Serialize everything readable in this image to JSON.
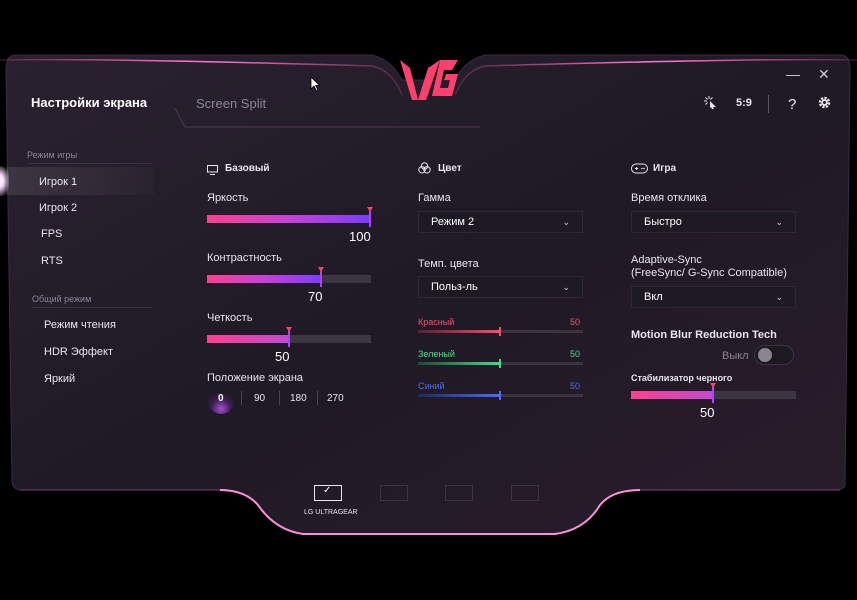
{
  "header": {
    "title": "Настройки экрана",
    "screen_split": "Screen Split",
    "ratio": "5:9",
    "help": "?",
    "logo_text": "LG",
    "minimize": "—",
    "close": "✕"
  },
  "sidebar": {
    "game_mode_head": "Режим игры",
    "game_items": [
      "Игрок 1",
      "Игрок 2",
      "FPS",
      "RTS"
    ],
    "general_mode_head": "Общий режим",
    "general_items": [
      "Режим чтения",
      "HDR Эффект",
      "Яркий"
    ]
  },
  "basic": {
    "head": "Базовый",
    "brightness": {
      "label": "Яркость",
      "value": "100",
      "level": 100
    },
    "contrast": {
      "label": "Контрастность",
      "value": "70",
      "level": 70
    },
    "sharpness": {
      "label": "Четкость",
      "value": "50",
      "level": 50
    },
    "position": {
      "label": "Положение экрана",
      "options": [
        "0",
        "90",
        "180",
        "270"
      ],
      "selected": "0"
    }
  },
  "color": {
    "head": "Цвет",
    "gamma": {
      "label": "Гамма",
      "value": "Режим 2"
    },
    "temp": {
      "label": "Темп. цвета",
      "value": "Польз-ль"
    },
    "red": {
      "label": "Красный",
      "value": "50",
      "level": 50,
      "color": "#ff4a6a"
    },
    "green": {
      "label": "Зеленый",
      "value": "50",
      "level": 50,
      "color": "#3fe08a"
    },
    "blue": {
      "label": "Синий",
      "value": "50",
      "level": 50,
      "color": "#4a6cff"
    }
  },
  "game": {
    "head": "Игра",
    "response": {
      "label": "Время отклика",
      "value": "Быстро"
    },
    "adaptive": {
      "label_line1": "Adaptive-Sync",
      "label_line2": "(FreeSync/ G-Sync Compatible)",
      "value": "Вкл"
    },
    "mbr": {
      "label": "Motion Blur Reduction Tech",
      "state": "Выкл"
    },
    "black": {
      "label": "Стабилизатор черного",
      "value": "50",
      "level": 50
    }
  },
  "monitors": {
    "active_label": "LG ULTRAGEAR",
    "check": "✓"
  },
  "colors": {
    "accent_pink": "#ff3f8e",
    "accent_purple": "#7d3cff"
  }
}
